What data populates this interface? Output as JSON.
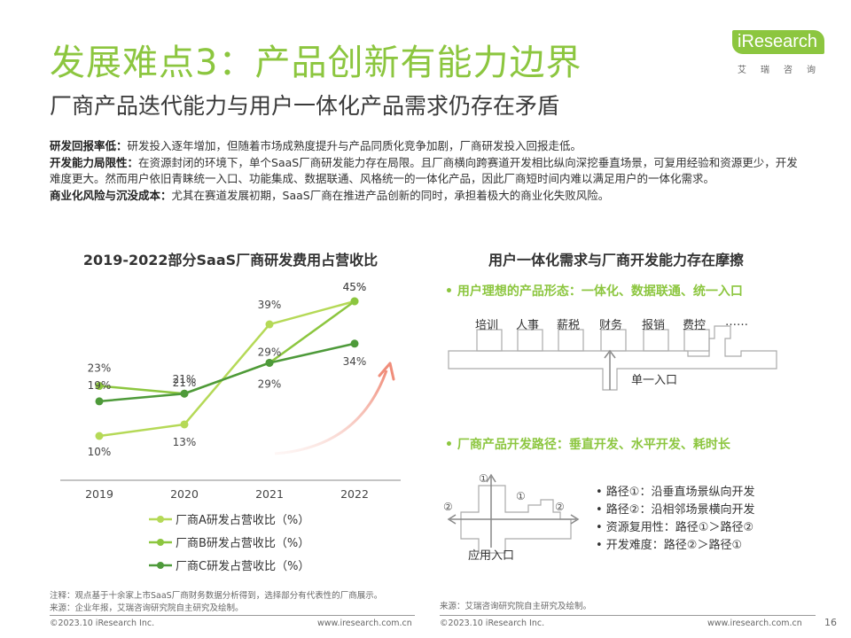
{
  "header": {
    "title": "发展难点3：产品创新有能力边界",
    "subtitle": "厂商产品迭代能力与用户一体化产品需求仍存在矛盾",
    "logo_text": "iResearch",
    "logo_cn": "艾瑞咨询"
  },
  "intro": [
    {
      "label": "研发回报率低：",
      "text": "研发投入逐年增加，但随着市场成熟度提升与产品同质化竞争加剧，厂商研发投入回报走低。"
    },
    {
      "label": "开发能力局限性：",
      "text": "在资源封闭的环境下，单个SaaS厂商研发能力存在局限。且厂商横向跨赛道开发相比纵向深挖垂直场景，可复用经验和资源更少，开发难度更大。然而用户依旧青睐统一入口、功能集成、数据联通、风格统一的一体化产品，因此厂商短时间内难以满足用户的一体化需求。"
    },
    {
      "label": "商业化风险与沉没成本：",
      "text": "尤其在赛道发展初期，SaaS厂商在推进产品创新的同时，承担着极大的商业化失败风险。"
    }
  ],
  "left_panel": {
    "title": "2019-2022部分SaaS厂商研发费用占营收比"
  },
  "chart_data": {
    "type": "line",
    "title": "2019-2022部分SaaS厂商研发费用占营收比",
    "x": [
      "2019",
      "2020",
      "2021",
      "2022"
    ],
    "series": [
      {
        "name": "厂商A研发占营收比（%）",
        "values": [
          10,
          13,
          39,
          45
        ],
        "labels": [
          "10%",
          "13%",
          "39%",
          "45%"
        ],
        "color": "#b5d957"
      },
      {
        "name": "厂商B研发占营收比（%）",
        "values": [
          23,
          21,
          29,
          45
        ],
        "labels": [
          "23%",
          "21%",
          "29%",
          "45%"
        ],
        "color": "#8cc63f"
      },
      {
        "name": "厂商C研发占营收比（%）",
        "values": [
          19,
          21,
          29,
          34
        ],
        "labels": [
          "19%",
          "21%",
          "29%",
          "34%"
        ],
        "color": "#4e9a3a"
      }
    ],
    "legend_position": "bottom",
    "grid": false
  },
  "right_panel": {
    "title": "用户一体化需求与厂商开发能力存在摩擦",
    "ideal_head": "• 用户理想的产品形态：一体化、数据联通、统一入口",
    "modules": [
      "培训",
      "人事",
      "薪税",
      "财务",
      "报销",
      "费控",
      "……"
    ],
    "single_entry": "单一入口",
    "path_head": "• 厂商产品开发路径：垂直开发、水平开发、耗时长",
    "path_marks": {
      "vertical": "①",
      "horizontal": "②"
    },
    "app_entry": "应用入口",
    "bullets": [
      "•  路径①：沿垂直场景纵向开发",
      "•  路径②：沿相邻场景横向开发",
      "•  资源复用性：路径①＞路径②",
      "•  开发难度：路径②＞路径①"
    ]
  },
  "footer": {
    "note": "注释：观点基于十余家上市SaaS厂商财务数据分析得到，选择部分有代表性的厂商展示。",
    "source_left": "来源：企业年报，艾瑞咨询研究院自主研究及绘制。",
    "source_right": "来源：艾瑞咨询研究院自主研究及绘制。",
    "copyright_left": "©2023.10 iResearch Inc.",
    "url_left": "www.iresearch.com.cn",
    "copyright_right": "©2023.10 iResearch Inc.",
    "url_right": "www.iresearch.com.cn",
    "page_number": "16"
  }
}
